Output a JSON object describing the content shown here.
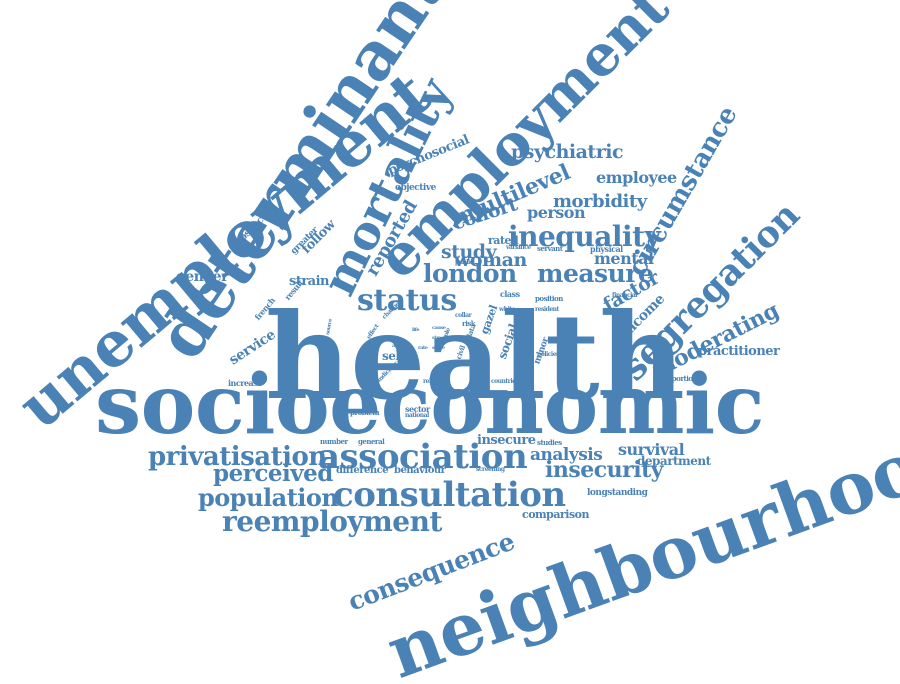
{
  "color": "#4a82b5",
  "words": [
    {
      "text": "health"
    },
    {
      "text": "socioeconomic"
    },
    {
      "text": "neighbourhood"
    },
    {
      "text": "unemployment"
    },
    {
      "text": "determinant"
    },
    {
      "text": "employment"
    },
    {
      "text": "mortality"
    },
    {
      "text": "consultation"
    },
    {
      "text": "association"
    },
    {
      "text": "segregation"
    },
    {
      "text": "status"
    },
    {
      "text": "reemployment"
    },
    {
      "text": "circumstance"
    },
    {
      "text": "privatisation"
    },
    {
      "text": "population"
    },
    {
      "text": "consequence"
    },
    {
      "text": "inequality"
    },
    {
      "text": "london"
    },
    {
      "text": "measure"
    },
    {
      "text": "perceived"
    },
    {
      "text": "insecurity"
    },
    {
      "text": "moderating"
    },
    {
      "text": "multilevel"
    },
    {
      "text": "psychiatric"
    },
    {
      "text": "morbidity"
    },
    {
      "text": "employee"
    },
    {
      "text": "woman"
    },
    {
      "text": "study"
    },
    {
      "text": "cohort"
    },
    {
      "text": "person"
    },
    {
      "text": "mental"
    },
    {
      "text": "analysis"
    },
    {
      "text": "survival"
    },
    {
      "text": "factor"
    },
    {
      "text": "income"
    },
    {
      "text": "reported"
    },
    {
      "text": "practitioner"
    },
    {
      "text": "psychosocial"
    },
    {
      "text": "department"
    },
    {
      "text": "insecure"
    },
    {
      "text": "gender"
    },
    {
      "text": "strain"
    },
    {
      "text": "service"
    },
    {
      "text": "rated"
    },
    {
      "text": "difference"
    },
    {
      "text": "behaviour"
    },
    {
      "text": "comparison"
    },
    {
      "text": "longstanding"
    },
    {
      "text": "social"
    },
    {
      "text": "self"
    },
    {
      "text": "objective"
    },
    {
      "text": "prospective"
    },
    {
      "text": "follow"
    },
    {
      "text": "greater"
    },
    {
      "text": "result"
    },
    {
      "text": "french"
    },
    {
      "text": "increase"
    },
    {
      "text": "minor"
    },
    {
      "text": "proportion"
    },
    {
      "text": "number"
    },
    {
      "text": "general"
    },
    {
      "text": "studies"
    },
    {
      "text": "sector"
    },
    {
      "text": "national"
    },
    {
      "text": "problem"
    },
    {
      "text": "screening"
    },
    {
      "text": "class"
    },
    {
      "text": "risk"
    },
    {
      "text": "collar"
    },
    {
      "text": "white"
    },
    {
      "text": "position"
    },
    {
      "text": "resident"
    },
    {
      "text": "financial"
    },
    {
      "text": "physical"
    },
    {
      "text": "servant"
    },
    {
      "text": "variance"
    },
    {
      "text": "public"
    },
    {
      "text": "policies"
    },
    {
      "text": "countrie"
    },
    {
      "text": "related"
    },
    {
      "text": "indicator"
    },
    {
      "text": "civil"
    },
    {
      "text": "data"
    },
    {
      "text": "gazel"
    },
    {
      "text": "role"
    },
    {
      "text": "effect"
    },
    {
      "text": "change"
    },
    {
      "text": "illness"
    },
    {
      "text": "areas"
    },
    {
      "text": "rate"
    },
    {
      "text": "source"
    },
    {
      "text": "life"
    },
    {
      "text": "score"
    },
    {
      "text": "size"
    },
    {
      "text": "cause"
    },
    {
      "text": "aged"
    }
  ]
}
